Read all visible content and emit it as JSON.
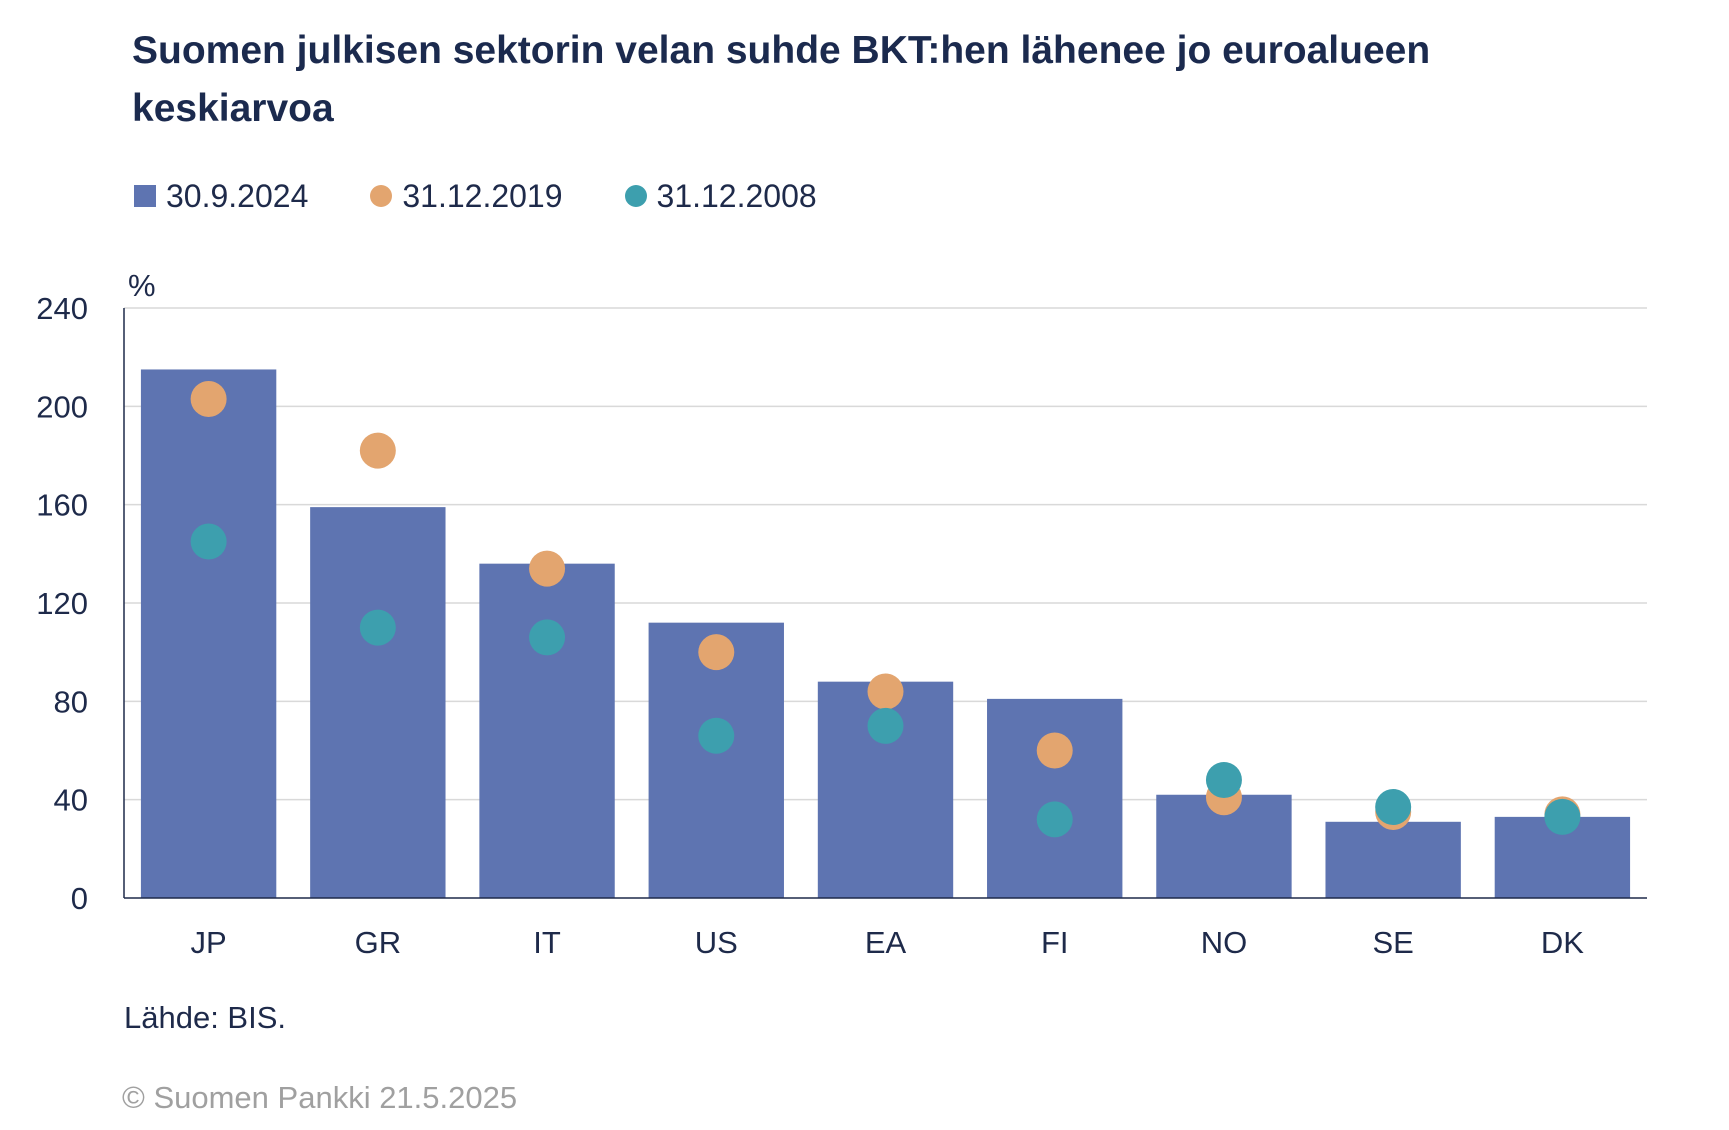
{
  "title": "Suomen julkisen sektorin velan suhde BKT:hen lähenee jo euroalueen keskiarvoa",
  "source": "Lähde: BIS.",
  "copyright": "© Suomen Pankki 21.5.2025",
  "colors": {
    "bar": "#5e74b1",
    "dot2019": "#e3a56f",
    "dot2008": "#3d9fae",
    "grid": "#d9d9d9",
    "axis": "#1e2a4a"
  },
  "chart_data": {
    "type": "bar",
    "title": "Suomen julkisen sektorin velan suhde BKT:hen lähenee jo euroalueen keskiarvoa",
    "ylabel": "%",
    "ylim": [
      0,
      240
    ],
    "yticks": [
      0,
      40,
      80,
      120,
      160,
      200,
      240
    ],
    "grid": true,
    "legend_position": "top-left",
    "categories": [
      "JP",
      "GR",
      "IT",
      "US",
      "EA",
      "FI",
      "NO",
      "SE",
      "DK"
    ],
    "series": [
      {
        "name": "30.9.2024",
        "kind": "bar",
        "values": [
          215,
          159,
          136,
          112,
          88,
          81,
          42,
          31,
          33
        ]
      },
      {
        "name": "31.12.2019",
        "kind": "dot",
        "values": [
          203,
          182,
          134,
          100,
          84,
          60,
          41,
          35,
          34
        ]
      },
      {
        "name": "31.12.2008",
        "kind": "dot",
        "values": [
          145,
          110,
          106,
          66,
          70,
          32,
          48,
          37,
          33
        ]
      }
    ]
  }
}
